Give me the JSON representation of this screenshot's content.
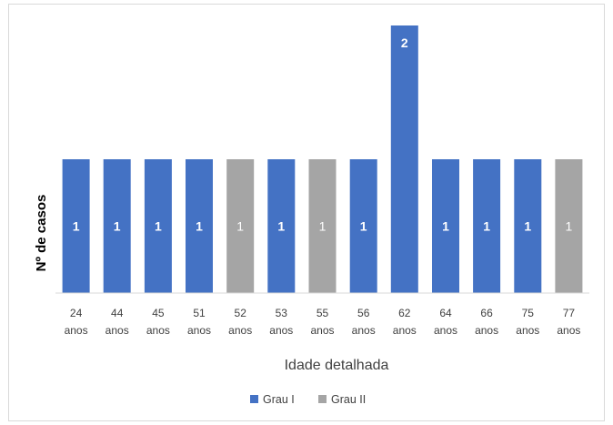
{
  "chart_data": {
    "type": "bar",
    "title": "",
    "xlabel": "Idade detalhada",
    "ylabel": "Nº de casos",
    "ylim": [
      0,
      2
    ],
    "grid": false,
    "legend_position": "bottom",
    "categories": [
      [
        "24",
        "anos"
      ],
      [
        "44",
        "anos"
      ],
      [
        "45",
        "anos"
      ],
      [
        "51",
        "anos"
      ],
      [
        "52",
        "anos"
      ],
      [
        "53",
        "anos"
      ],
      [
        "55",
        "anos"
      ],
      [
        "56",
        "anos"
      ],
      [
        "62",
        "anos"
      ],
      [
        "64",
        "anos"
      ],
      [
        "66",
        "anos"
      ],
      [
        "75",
        "anos"
      ],
      [
        "77",
        "anos"
      ]
    ],
    "series": [
      {
        "name": "Grau I",
        "color": "#4472c4"
      },
      {
        "name": "Grau II",
        "color": "#a5a5a5"
      }
    ],
    "bars": [
      {
        "value": 1,
        "series": 0
      },
      {
        "value": 1,
        "series": 0
      },
      {
        "value": 1,
        "series": 0
      },
      {
        "value": 1,
        "series": 0
      },
      {
        "value": 1,
        "series": 1
      },
      {
        "value": 1,
        "series": 0
      },
      {
        "value": 1,
        "series": 1
      },
      {
        "value": 1,
        "series": 0
      },
      {
        "value": 2,
        "series": 0
      },
      {
        "value": 1,
        "series": 0
      },
      {
        "value": 1,
        "series": 0
      },
      {
        "value": 1,
        "series": 0
      },
      {
        "value": 1,
        "series": 1
      }
    ]
  }
}
